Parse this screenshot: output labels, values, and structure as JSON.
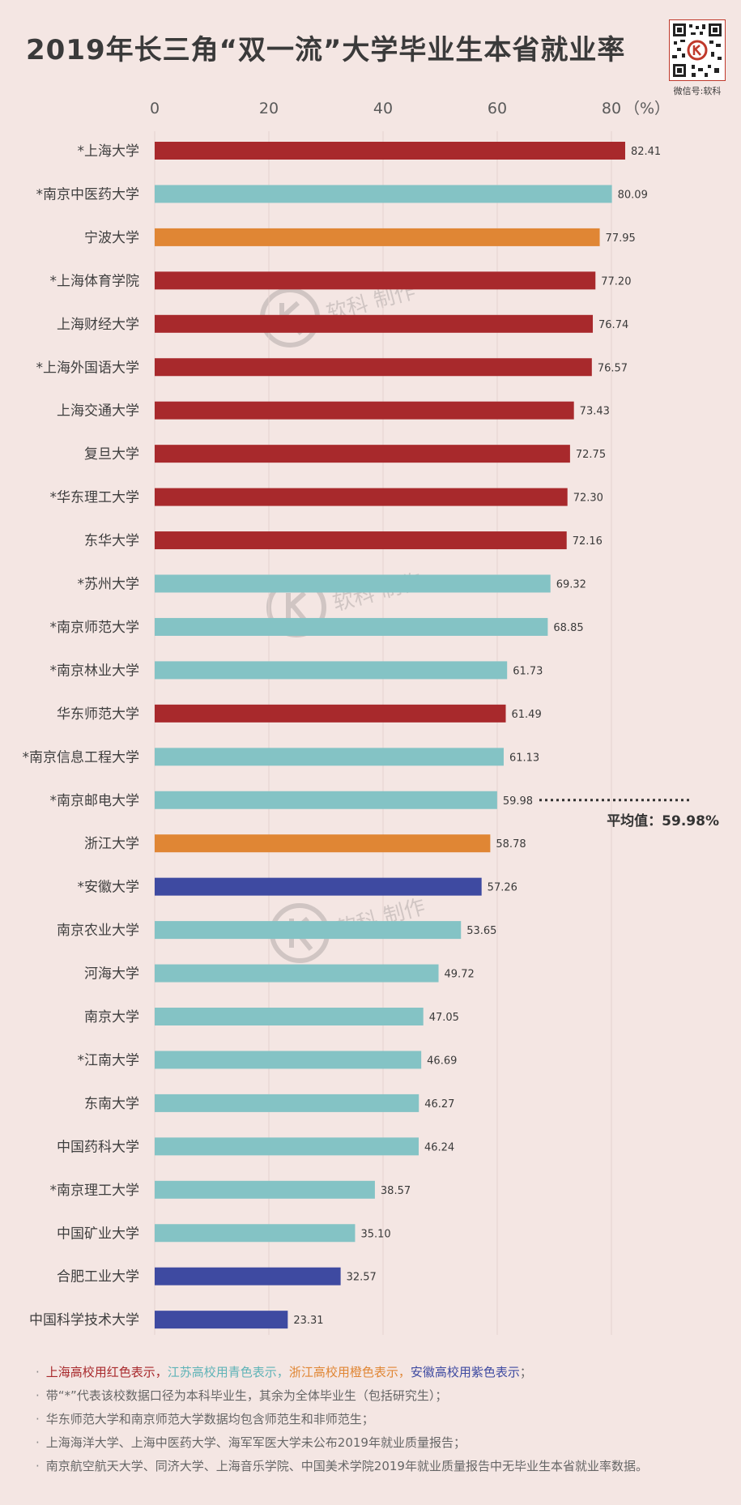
{
  "qr": {
    "caption": "微信号:软科"
  },
  "watermark": {
    "text": "软科 制作"
  },
  "chart_data": {
    "type": "bar",
    "orientation": "horizontal",
    "title": "2019年长三角“双一流”大学毕业生本省就业率",
    "xlabel": "",
    "ylabel": "",
    "unit_label": "（%）",
    "xlim": [
      0,
      90
    ],
    "ticks": [
      "0",
      "20",
      "40",
      "60",
      "80"
    ],
    "tick_values": [
      0,
      20,
      40,
      60,
      80
    ],
    "grid": true,
    "categories": [
      "*上海大学",
      "*南京中医药大学",
      "宁波大学",
      "*上海体育学院",
      "上海财经大学",
      "*上海外国语大学",
      "上海交通大学",
      "复旦大学",
      "*华东理工大学",
      "东华大学",
      "*苏州大学",
      "*南京师范大学",
      "*南京林业大学",
      "华东师范大学",
      "*南京信息工程大学",
      "*南京邮电大学",
      "浙江大学",
      "*安徽大学",
      "南京农业大学",
      "河海大学",
      "南京大学",
      "*江南大学",
      "东南大学",
      "中国药科大学",
      "*南京理工大学",
      "中国矿业大学",
      "合肥工业大学",
      "中国科学技术大学"
    ],
    "values": [
      82.41,
      80.09,
      77.95,
      77.2,
      76.74,
      76.57,
      73.43,
      72.75,
      72.3,
      72.16,
      69.32,
      68.85,
      61.73,
      61.49,
      61.13,
      59.98,
      58.78,
      57.26,
      53.65,
      49.72,
      47.05,
      46.69,
      46.27,
      46.24,
      38.57,
      35.1,
      32.57,
      23.31
    ],
    "value_labels": [
      "82.41",
      "80.09",
      "77.95",
      "77.20",
      "76.74",
      "76.57",
      "73.43",
      "72.75",
      "72.30",
      "72.16",
      "69.32",
      "68.85",
      "61.73",
      "61.49",
      "61.13",
      "59.98",
      "58.78",
      "57.26",
      "53.65",
      "49.72",
      "47.05",
      "46.69",
      "46.27",
      "46.24",
      "38.57",
      "35.10",
      "32.57",
      "23.31"
    ],
    "groups": [
      "上海",
      "江苏",
      "浙江",
      "上海",
      "上海",
      "上海",
      "上海",
      "上海",
      "上海",
      "上海",
      "江苏",
      "江苏",
      "江苏",
      "上海",
      "江苏",
      "江苏",
      "浙江",
      "安徽",
      "江苏",
      "江苏",
      "江苏",
      "江苏",
      "江苏",
      "江苏",
      "江苏",
      "江苏",
      "安徽",
      "安徽"
    ],
    "group_colors": {
      "上海": "#a8292c",
      "江苏": "#84c3c5",
      "浙江": "#e08634",
      "安徽": "#3e4aa1"
    },
    "average": {
      "value": 59.98,
      "label": "平均值：59.98%"
    }
  },
  "notes": [
    {
      "parts": [
        {
          "text": "上海高校用红色表示，",
          "color": "#a8292c"
        },
        {
          "text": "江苏高校用青色表示，",
          "color": "#5fb3b7"
        },
        {
          "text": "浙江高校用橙色表示，",
          "color": "#e08634"
        },
        {
          "text": "安徽高校用紫色表示",
          "color": "#3e4aa1"
        },
        {
          "text": "；",
          "color": "#666666"
        }
      ]
    },
    {
      "parts": [
        {
          "text": "带“*”代表该校数据口径为本科毕业生，其余为全体毕业生（包括研究生）；",
          "color": "#666666"
        }
      ]
    },
    {
      "parts": [
        {
          "text": "华东师范大学和南京师范大学数据均包含师范生和非师范生；",
          "color": "#666666"
        }
      ]
    },
    {
      "parts": [
        {
          "text": "上海海洋大学、上海中医药大学、海军军医大学未公布2019年就业质量报告；",
          "color": "#666666"
        }
      ]
    },
    {
      "parts": [
        {
          "text": "南京航空航天大学、同济大学、上海音乐学院、中国美术学院2019年就业质量报告中无毕业生本省就业率数据。",
          "color": "#666666"
        }
      ]
    }
  ]
}
